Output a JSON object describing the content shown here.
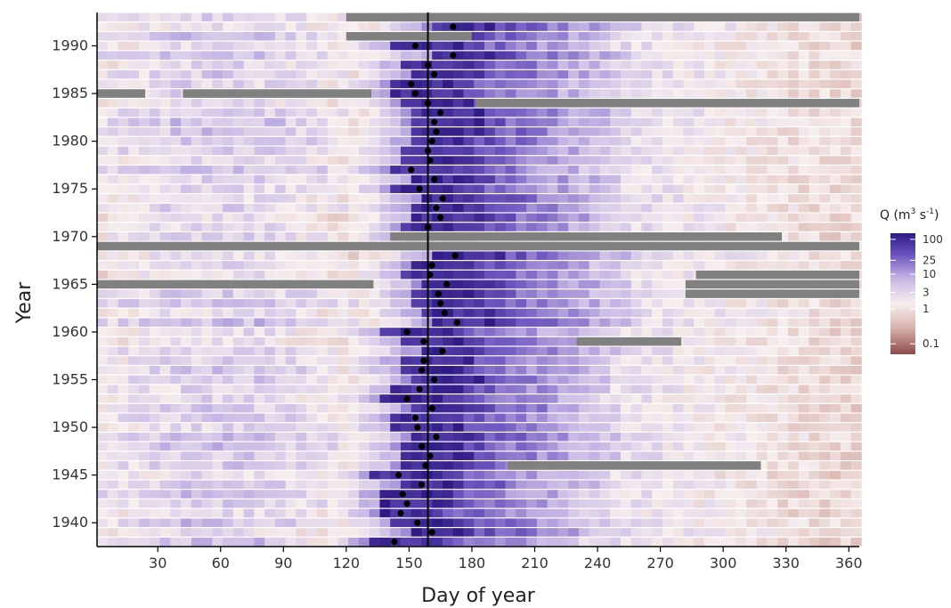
{
  "chart_data": {
    "type": "heatmap",
    "xlabel": "Day of year",
    "ylabel": "Year",
    "xlim": [
      1,
      365
    ],
    "ylim": [
      1938,
      1993
    ],
    "x_ticks": [
      30,
      60,
      90,
      120,
      150,
      180,
      210,
      240,
      270,
      300,
      330,
      360
    ],
    "y_ticks": [
      1940,
      1945,
      1950,
      1955,
      1960,
      1965,
      1970,
      1975,
      1980,
      1985,
      1990
    ],
    "vline_day": 159,
    "legend": {
      "title_main": "Q (m",
      "title_sup1": "3",
      "title_mid": " s",
      "title_sup2": "-1",
      "title_end": ")",
      "labels": [
        "100",
        "25",
        "10",
        "3",
        "1",
        "0.1"
      ],
      "scale": "log"
    },
    "colors": {
      "low": "#8e4b4b",
      "lowmid": "#d9b3ad",
      "neutral": "#f7eeee",
      "mid": "#b9a6dd",
      "high": "#2e1a85",
      "missing": "#808080",
      "peak_marker": "#000000"
    },
    "peak_days": [
      {
        "year": 1938,
        "day": 143
      },
      {
        "year": 1939,
        "day": 161
      },
      {
        "year": 1940,
        "day": 154
      },
      {
        "year": 1941,
        "day": 146
      },
      {
        "year": 1942,
        "day": 149
      },
      {
        "year": 1943,
        "day": 147
      },
      {
        "year": 1944,
        "day": 156
      },
      {
        "year": 1945,
        "day": 145
      },
      {
        "year": 1946,
        "day": 158
      },
      {
        "year": 1947,
        "day": 160
      },
      {
        "year": 1948,
        "day": 156
      },
      {
        "year": 1949,
        "day": 163
      },
      {
        "year": 1950,
        "day": 154
      },
      {
        "year": 1951,
        "day": 153
      },
      {
        "year": 1952,
        "day": 161
      },
      {
        "year": 1953,
        "day": 149
      },
      {
        "year": 1954,
        "day": 155
      },
      {
        "year": 1955,
        "day": 162
      },
      {
        "year": 1956,
        "day": 156
      },
      {
        "year": 1957,
        "day": 157
      },
      {
        "year": 1958,
        "day": 166
      },
      {
        "year": 1959,
        "day": 157
      },
      {
        "year": 1960,
        "day": 149
      },
      {
        "year": 1961,
        "day": 173
      },
      {
        "year": 1962,
        "day": 167
      },
      {
        "year": 1963,
        "day": 165
      },
      {
        "year": 1964,
        "day": 164
      },
      {
        "year": 1965,
        "day": 168
      },
      {
        "year": 1966,
        "day": 160
      },
      {
        "year": 1967,
        "day": 161
      },
      {
        "year": 1968,
        "day": 172
      },
      {
        "year": 1971,
        "day": 159
      },
      {
        "year": 1972,
        "day": 165
      },
      {
        "year": 1973,
        "day": 163
      },
      {
        "year": 1974,
        "day": 166
      },
      {
        "year": 1975,
        "day": 155
      },
      {
        "year": 1976,
        "day": 162
      },
      {
        "year": 1977,
        "day": 151
      },
      {
        "year": 1978,
        "day": 160
      },
      {
        "year": 1979,
        "day": 159
      },
      {
        "year": 1980,
        "day": 161
      },
      {
        "year": 1981,
        "day": 163
      },
      {
        "year": 1982,
        "day": 162
      },
      {
        "year": 1983,
        "day": 165
      },
      {
        "year": 1984,
        "day": 159
      },
      {
        "year": 1985,
        "day": 153
      },
      {
        "year": 1986,
        "day": 151
      },
      {
        "year": 1987,
        "day": 162
      },
      {
        "year": 1988,
        "day": 159
      },
      {
        "year": 1989,
        "day": 171
      },
      {
        "year": 1990,
        "day": 153
      },
      {
        "year": 1992,
        "day": 171
      }
    ],
    "missing": [
      {
        "year": 1993,
        "start": 120,
        "end": 365
      },
      {
        "year": 1991,
        "start": 120,
        "end": 180
      },
      {
        "year": 1985,
        "start": 1,
        "end": 24
      },
      {
        "year": 1985,
        "start": 42,
        "end": 132
      },
      {
        "year": 1984,
        "start": 182,
        "end": 365
      },
      {
        "year": 1970,
        "start": 141,
        "end": 328
      },
      {
        "year": 1969,
        "start": 1,
        "end": 365
      },
      {
        "year": 1965,
        "start": 1,
        "end": 133
      },
      {
        "year": 1965,
        "start": 282,
        "end": 365
      },
      {
        "year": 1964,
        "start": 282,
        "end": 365
      },
      {
        "year": 1966,
        "start": 287,
        "end": 365
      },
      {
        "year": 1959,
        "start": 230,
        "end": 280
      },
      {
        "year": 1946,
        "start": 197,
        "end": 318
      }
    ]
  }
}
